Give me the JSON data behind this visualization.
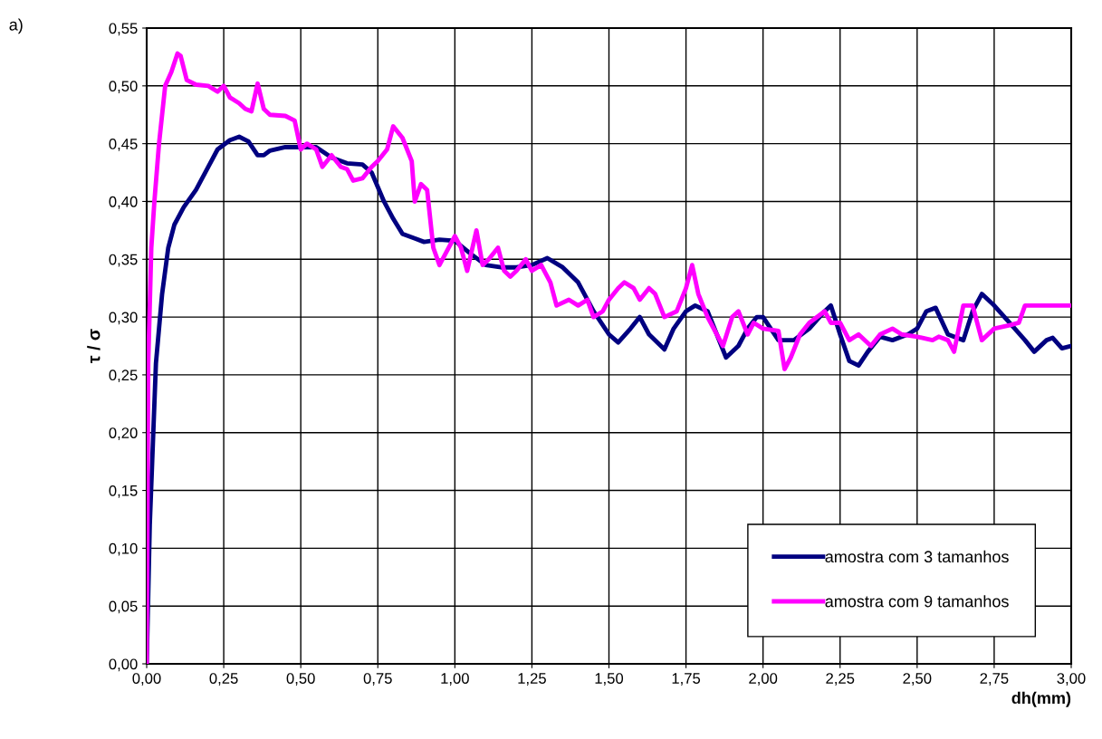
{
  "chart_data": {
    "type": "line",
    "xlabel": "dh(mm)",
    "ylabel": "τ / σ",
    "annotations": [
      "a)"
    ],
    "grid": true,
    "legend": "bottom right",
    "line_style": "solid",
    "marker": "none",
    "xlim": [
      0,
      3
    ],
    "ylim": [
      0,
      0.55
    ],
    "xticks": [
      {
        "value": 0,
        "label": "0,00"
      },
      {
        "value": 0.25,
        "label": "0,25"
      },
      {
        "value": 0.5,
        "label": "0,50"
      },
      {
        "value": 0.75,
        "label": "0,75"
      },
      {
        "value": 1,
        "label": "1,00"
      },
      {
        "value": 1.25,
        "label": "1,25"
      },
      {
        "value": 1.5,
        "label": "1,50"
      },
      {
        "value": 1.75,
        "label": "1,75"
      },
      {
        "value": 2,
        "label": "2,00"
      },
      {
        "value": 2.25,
        "label": "2,25"
      },
      {
        "value": 2.5,
        "label": "2,50"
      },
      {
        "value": 2.75,
        "label": "2,75"
      },
      {
        "value": 3,
        "label": "3,00"
      }
    ],
    "yticks": [
      {
        "value": 0,
        "label": "0,00"
      },
      {
        "value": 0.05,
        "label": "0,05"
      },
      {
        "value": 0.1,
        "label": "0,10"
      },
      {
        "value": 0.15,
        "label": "0,15"
      },
      {
        "value": 0.2,
        "label": "0,20"
      },
      {
        "value": 0.25,
        "label": "0,25"
      },
      {
        "value": 0.3,
        "label": "0,30"
      },
      {
        "value": 0.35,
        "label": "0,35"
      },
      {
        "value": 0.4,
        "label": "0,40"
      },
      {
        "value": 0.45,
        "label": "0,45"
      },
      {
        "value": 0.5,
        "label": "0,50"
      },
      {
        "value": 0.55,
        "label": "0,55"
      }
    ],
    "series": [
      {
        "name": "amostra com 3 tamanhos",
        "color": "#000080",
        "x": [
          0,
          0.01,
          0.02,
          0.03,
          0.05,
          0.07,
          0.09,
          0.12,
          0.16,
          0.2,
          0.23,
          0.27,
          0.3,
          0.33,
          0.36,
          0.38,
          0.4,
          0.45,
          0.5,
          0.55,
          0.6,
          0.65,
          0.7,
          0.73,
          0.77,
          0.8,
          0.83,
          0.87,
          0.9,
          0.95,
          1.0,
          1.05,
          1.1,
          1.15,
          1.2,
          1.25,
          1.3,
          1.35,
          1.4,
          1.45,
          1.5,
          1.53,
          1.57,
          1.6,
          1.63,
          1.68,
          1.71,
          1.75,
          1.78,
          1.82,
          1.85,
          1.88,
          1.92,
          1.95,
          1.98,
          2.0,
          2.05,
          2.1,
          2.15,
          2.2,
          2.22,
          2.25,
          2.28,
          2.31,
          2.34,
          2.38,
          2.42,
          2.47,
          2.5,
          2.53,
          2.56,
          2.6,
          2.65,
          2.68,
          2.71,
          2.75,
          2.8,
          2.85,
          2.88,
          2.92,
          2.94,
          2.97,
          3.0
        ],
        "values": [
          0,
          0.12,
          0.19,
          0.26,
          0.32,
          0.36,
          0.38,
          0.395,
          0.41,
          0.43,
          0.445,
          0.453,
          0.456,
          0.452,
          0.44,
          0.44,
          0.444,
          0.447,
          0.447,
          0.447,
          0.438,
          0.433,
          0.432,
          0.425,
          0.4,
          0.385,
          0.372,
          0.368,
          0.365,
          0.367,
          0.366,
          0.355,
          0.345,
          0.343,
          0.343,
          0.345,
          0.351,
          0.343,
          0.33,
          0.305,
          0.285,
          0.278,
          0.29,
          0.3,
          0.285,
          0.272,
          0.29,
          0.305,
          0.31,
          0.305,
          0.285,
          0.265,
          0.275,
          0.29,
          0.3,
          0.3,
          0.28,
          0.28,
          0.29,
          0.305,
          0.31,
          0.285,
          0.262,
          0.258,
          0.27,
          0.283,
          0.28,
          0.285,
          0.29,
          0.305,
          0.308,
          0.285,
          0.28,
          0.305,
          0.32,
          0.31,
          0.295,
          0.28,
          0.27,
          0.28,
          0.282,
          0.273,
          0.275
        ]
      },
      {
        "name": "amostra com 9 tamanhos",
        "color": "#ff00ff",
        "x": [
          0,
          0.005,
          0.015,
          0.025,
          0.04,
          0.06,
          0.08,
          0.1,
          0.11,
          0.13,
          0.16,
          0.2,
          0.23,
          0.25,
          0.27,
          0.3,
          0.32,
          0.34,
          0.36,
          0.38,
          0.4,
          0.45,
          0.48,
          0.5,
          0.52,
          0.55,
          0.57,
          0.6,
          0.63,
          0.65,
          0.67,
          0.7,
          0.73,
          0.75,
          0.78,
          0.8,
          0.83,
          0.86,
          0.87,
          0.89,
          0.91,
          0.93,
          0.95,
          0.97,
          1.0,
          1.02,
          1.04,
          1.07,
          1.09,
          1.11,
          1.14,
          1.16,
          1.18,
          1.2,
          1.23,
          1.25,
          1.28,
          1.31,
          1.33,
          1.37,
          1.4,
          1.43,
          1.45,
          1.48,
          1.5,
          1.53,
          1.55,
          1.58,
          1.6,
          1.63,
          1.65,
          1.68,
          1.72,
          1.75,
          1.77,
          1.79,
          1.82,
          1.85,
          1.87,
          1.9,
          1.92,
          1.95,
          1.97,
          2.0,
          2.05,
          2.07,
          2.09,
          2.12,
          2.15,
          2.2,
          2.22,
          2.25,
          2.28,
          2.31,
          2.35,
          2.38,
          2.42,
          2.45,
          2.5,
          2.55,
          2.57,
          2.6,
          2.62,
          2.65,
          2.68,
          2.71,
          2.75,
          2.8,
          2.83,
          2.85,
          2.9,
          2.95,
          3.0
        ],
        "values": [
          0,
          0.26,
          0.36,
          0.4,
          0.45,
          0.5,
          0.512,
          0.528,
          0.526,
          0.505,
          0.501,
          0.5,
          0.495,
          0.5,
          0.49,
          0.485,
          0.48,
          0.478,
          0.502,
          0.48,
          0.475,
          0.474,
          0.47,
          0.445,
          0.45,
          0.445,
          0.43,
          0.44,
          0.43,
          0.428,
          0.418,
          0.42,
          0.43,
          0.435,
          0.445,
          0.465,
          0.455,
          0.435,
          0.4,
          0.415,
          0.41,
          0.36,
          0.345,
          0.355,
          0.37,
          0.36,
          0.34,
          0.375,
          0.345,
          0.35,
          0.36,
          0.34,
          0.335,
          0.34,
          0.35,
          0.34,
          0.345,
          0.33,
          0.31,
          0.315,
          0.31,
          0.315,
          0.3,
          0.305,
          0.315,
          0.325,
          0.33,
          0.325,
          0.315,
          0.325,
          0.32,
          0.3,
          0.305,
          0.325,
          0.345,
          0.32,
          0.3,
          0.285,
          0.275,
          0.3,
          0.305,
          0.285,
          0.295,
          0.29,
          0.288,
          0.255,
          0.265,
          0.285,
          0.295,
          0.305,
          0.295,
          0.295,
          0.28,
          0.285,
          0.275,
          0.285,
          0.29,
          0.285,
          0.283,
          0.28,
          0.283,
          0.28,
          0.27,
          0.31,
          0.31,
          0.28,
          0.29,
          0.293,
          0.295,
          0.31,
          0.31,
          0.31,
          0.31
        ]
      }
    ]
  }
}
